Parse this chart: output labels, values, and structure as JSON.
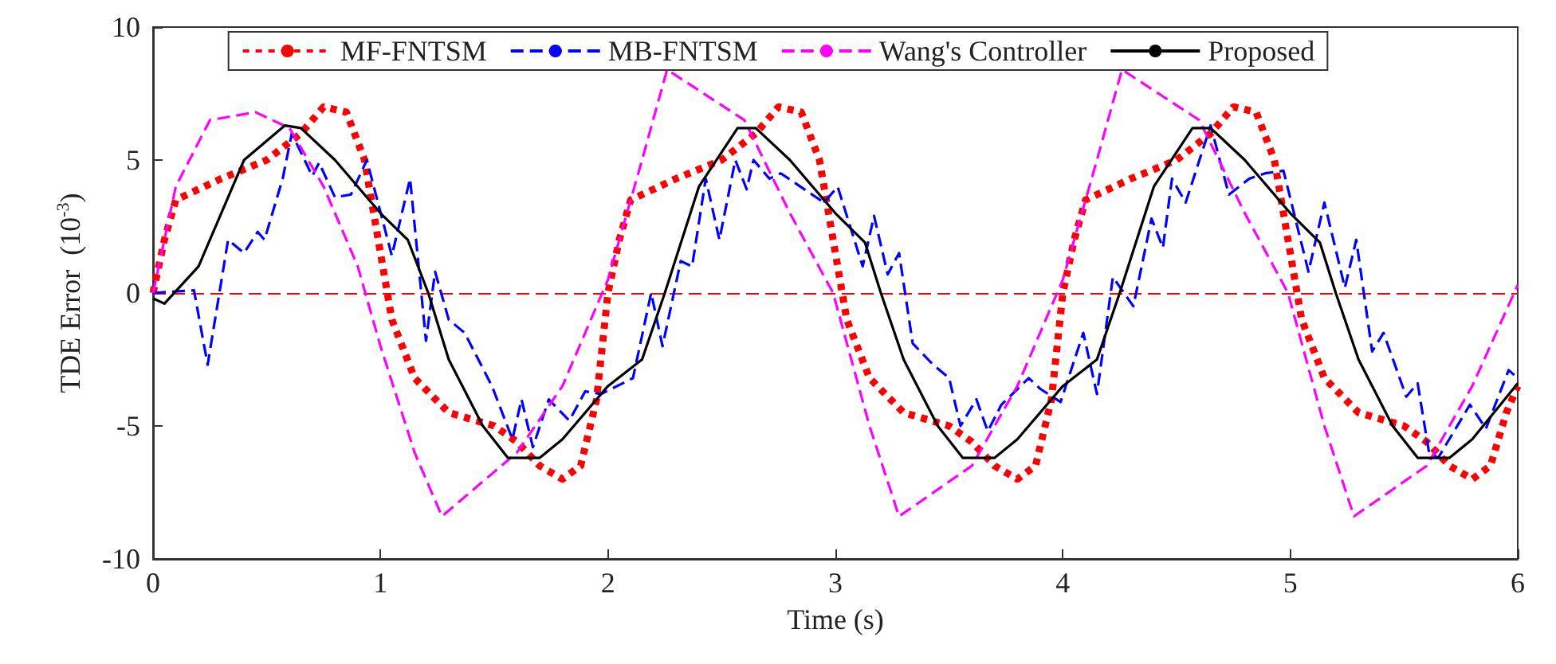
{
  "chart_data": {
    "type": "line",
    "xlabel": "Time (s)",
    "ylabel": "TDE Error  (10$^{-3}$)",
    "xlim": [
      0,
      6
    ],
    "xticks": [
      0,
      1,
      2,
      3,
      4,
      5,
      6
    ],
    "ylim": [
      -10,
      10
    ],
    "yticks": [
      -10,
      -5,
      0,
      5,
      10
    ],
    "grid": false,
    "legend": "top",
    "marker": "none",
    "ref_lines": [
      {
        "axis": "y",
        "value": 0,
        "color": "#ff0000",
        "line_style": "dashed"
      }
    ],
    "series": [
      {
        "name": "MF-FNTSM",
        "color": "#ff0000",
        "line_style": "dotted",
        "x": [
          0,
          0.05,
          0.1,
          0.3,
          0.5,
          0.65,
          0.75,
          0.85,
          0.93,
          1.0,
          1.05,
          1.15,
          1.3,
          1.5,
          1.6,
          1.7,
          1.8,
          1.88,
          1.95,
          2.0,
          2.05,
          2.1,
          2.3,
          2.5,
          2.65,
          2.75,
          2.85,
          2.93,
          3.0,
          3.05,
          3.15,
          3.3,
          3.5,
          3.6,
          3.7,
          3.8,
          3.88,
          3.95,
          4.0,
          4.05,
          4.1,
          4.3,
          4.5,
          4.65,
          4.75,
          4.85,
          4.93,
          5.0,
          5.05,
          5.15,
          5.3,
          5.5,
          5.6,
          5.7,
          5.8,
          5.88,
          5.95,
          6.0
        ],
        "values": [
          0,
          2,
          3.5,
          4.3,
          5,
          6,
          7,
          6.8,
          5,
          1.5,
          -1,
          -3.2,
          -4.5,
          -5,
          -5.6,
          -6.5,
          -7,
          -6.5,
          -4,
          0,
          2,
          3.5,
          4.3,
          5,
          6,
          7,
          6.8,
          5,
          1.5,
          -1,
          -3.2,
          -4.5,
          -5,
          -5.6,
          -6.5,
          -7,
          -6.5,
          -4,
          0,
          2,
          3.5,
          4.3,
          5,
          6,
          7,
          6.8,
          5,
          1.5,
          -1,
          -3.2,
          -4.5,
          -5,
          -5.6,
          -6.5,
          -7,
          -6.5,
          -4.5,
          -3.5
        ]
      },
      {
        "name": "MB-FNTSM",
        "color": "#0000ff",
        "line_style": "dashed",
        "x": [
          0,
          0.18,
          0.24,
          0.33,
          0.4,
          0.46,
          0.49,
          0.57,
          0.61,
          0.7,
          0.73,
          0.8,
          0.87,
          0.94,
          1.05,
          1.13,
          1.2,
          1.24,
          1.3,
          1.37,
          1.49,
          1.58,
          1.62,
          1.67,
          1.74,
          1.83,
          1.9,
          1.97,
          2.11,
          2.19,
          2.24,
          2.32,
          2.37,
          2.43,
          2.49,
          2.56,
          2.61,
          2.64,
          2.71,
          2.76,
          2.95,
          3.01,
          3.12,
          3.17,
          3.23,
          3.28,
          3.34,
          3.43,
          3.5,
          3.55,
          3.62,
          3.67,
          3.73,
          3.85,
          3.9,
          3.99,
          4.09,
          4.15,
          4.22,
          4.31,
          4.39,
          4.44,
          4.48,
          4.54,
          4.65,
          4.73,
          4.82,
          4.89,
          4.97,
          5.08,
          5.15,
          5.24,
          5.29,
          5.36,
          5.41,
          5.51,
          5.56,
          5.61,
          5.65,
          5.79,
          5.86,
          5.96,
          6.0
        ],
        "values": [
          0,
          0.1,
          -2.7,
          2,
          1.5,
          2.3,
          2,
          4.3,
          6,
          4.4,
          4.9,
          3.6,
          3.7,
          5,
          1.4,
          4.3,
          -1.8,
          0.8,
          -1,
          -1.5,
          -3.5,
          -5.5,
          -4,
          -5.8,
          -4,
          -4.8,
          -3.7,
          -3.8,
          -3.2,
          0,
          -2,
          1.2,
          1,
          4.3,
          2,
          5,
          3.9,
          5,
          4.3,
          4.5,
          3.4,
          4,
          1,
          2.9,
          0.7,
          1.5,
          -1.9,
          -2.7,
          -3.2,
          -5,
          -4,
          -5.2,
          -4.2,
          -3.2,
          -3.6,
          -4.1,
          -1.5,
          -3.8,
          0.6,
          -0.5,
          2.8,
          1.7,
          4.3,
          3.4,
          6.3,
          3.7,
          4.3,
          4.5,
          4.6,
          0.8,
          3.4,
          0.2,
          2,
          -2.2,
          -1.5,
          -3.9,
          -3.4,
          -6,
          -6.2,
          -4.2,
          -5.1,
          -2.9,
          -3.2
        ]
      },
      {
        "name": "Wang's Controller",
        "color": "#ff00ff",
        "line_style": "dashed",
        "x": [
          0,
          0.1,
          0.25,
          0.45,
          0.6,
          0.75,
          0.9,
          1.0,
          1.15,
          1.27,
          1.6,
          1.8,
          2.0,
          2.15,
          2.26,
          2.6,
          2.8,
          2.99,
          3.15,
          3.28,
          3.6,
          3.8,
          4.0,
          4.15,
          4.26,
          4.6,
          4.8,
          4.99,
          5.15,
          5.28,
          5.6,
          5.8,
          6.0
        ],
        "values": [
          0,
          4,
          6.5,
          6.8,
          6.2,
          4,
          1,
          -2,
          -6,
          -8.4,
          -6,
          -3.5,
          0.5,
          5,
          8.4,
          6.5,
          3,
          0,
          -5,
          -8.4,
          -6.5,
          -3.5,
          0.5,
          5,
          8.4,
          6.5,
          3,
          0,
          -5,
          -8.4,
          -6.5,
          -3.5,
          0.3
        ]
      },
      {
        "name": "Proposed",
        "color": "#000000",
        "line_style": "solid",
        "x": [
          0,
          0.05,
          0.2,
          0.4,
          0.58,
          0.65,
          0.8,
          1.0,
          1.12,
          1.21,
          1.3,
          1.45,
          1.56,
          1.7,
          1.8,
          2.0,
          2.15,
          2.25,
          2.4,
          2.57,
          2.65,
          2.8,
          3.0,
          3.13,
          3.2,
          3.3,
          3.45,
          3.56,
          3.7,
          3.8,
          4.0,
          4.15,
          4.25,
          4.4,
          4.57,
          4.65,
          4.8,
          5.0,
          5.13,
          5.2,
          5.3,
          5.45,
          5.56,
          5.7,
          5.8,
          6.0
        ],
        "values": [
          -0.2,
          -0.4,
          1,
          5,
          6.3,
          6.2,
          5,
          3,
          2,
          0,
          -2.5,
          -5,
          -6.2,
          -6.2,
          -5.5,
          -3.5,
          -2.5,
          0,
          4,
          6.2,
          6.2,
          5,
          3,
          1.9,
          0,
          -2.5,
          -5,
          -6.2,
          -6.2,
          -5.5,
          -3.5,
          -2.5,
          0,
          4,
          6.2,
          6.2,
          5,
          3,
          1.9,
          0,
          -2.5,
          -5,
          -6.2,
          -6.2,
          -5.5,
          -3.4
        ]
      }
    ]
  }
}
